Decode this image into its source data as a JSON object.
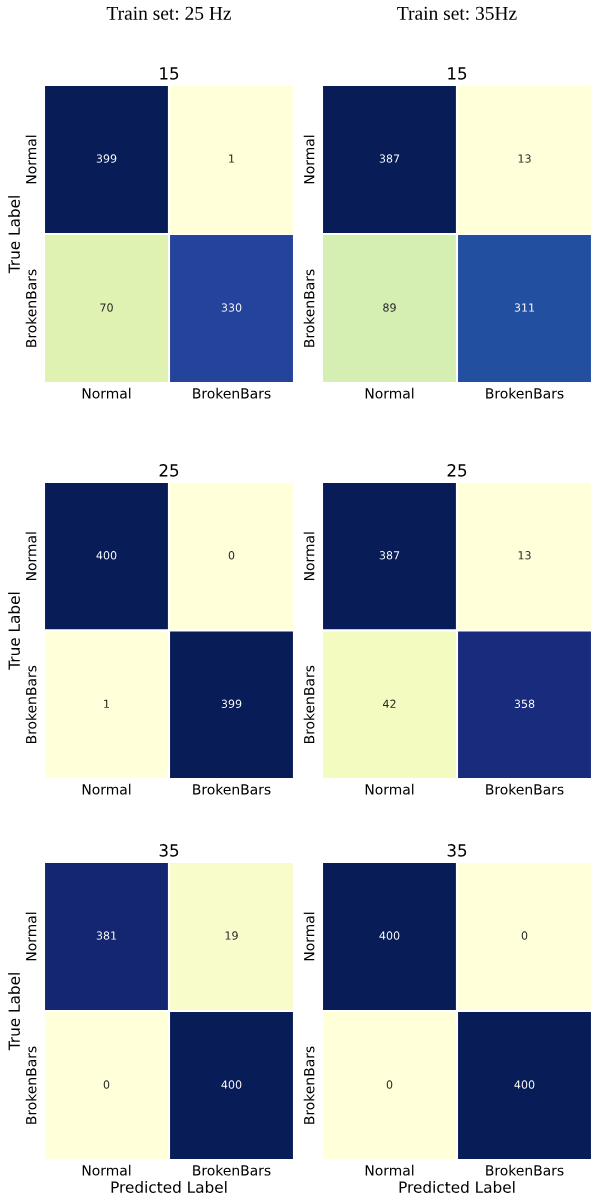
{
  "chart_data": [
    {
      "type": "heatmap",
      "subtitle": "Train set: 25 Hz",
      "title": "15",
      "ylabel": "True Label",
      "categories": [
        "Normal",
        "BrokenBars"
      ],
      "y_categories": [
        "Normal",
        "BrokenBars"
      ],
      "cells": [
        [
          399,
          1
        ],
        [
          70,
          330
        ]
      ],
      "data_labels": true
    },
    {
      "type": "heatmap",
      "subtitle": "Train set: 35Hz",
      "title": "15",
      "categories": [
        "Normal",
        "BrokenBars"
      ],
      "y_categories": [
        "Normal",
        "BrokenBars"
      ],
      "cells": [
        [
          387,
          13
        ],
        [
          89,
          311
        ]
      ],
      "data_labels": true
    },
    {
      "type": "heatmap",
      "title": "25",
      "ylabel": "True Label",
      "categories": [
        "Normal",
        "BrokenBars"
      ],
      "y_categories": [
        "Normal",
        "BrokenBars"
      ],
      "cells": [
        [
          400,
          0
        ],
        [
          1,
          399
        ]
      ],
      "data_labels": true
    },
    {
      "type": "heatmap",
      "title": "25",
      "categories": [
        "Normal",
        "BrokenBars"
      ],
      "y_categories": [
        "Normal",
        "BrokenBars"
      ],
      "cells": [
        [
          387,
          13
        ],
        [
          42,
          358
        ]
      ],
      "data_labels": true
    },
    {
      "type": "heatmap",
      "title": "35",
      "ylabel": "True Label",
      "xlabel": "Predicted Label",
      "categories": [
        "Normal",
        "BrokenBars"
      ],
      "y_categories": [
        "Normal",
        "BrokenBars"
      ],
      "cells": [
        [
          381,
          19
        ],
        [
          0,
          400
        ]
      ],
      "data_labels": true
    },
    {
      "type": "heatmap",
      "title": "35",
      "xlabel": "Predicted Label",
      "categories": [
        "Normal",
        "BrokenBars"
      ],
      "y_categories": [
        "Normal",
        "BrokenBars"
      ],
      "cells": [
        [
          400,
          0
        ],
        [
          0,
          400
        ]
      ],
      "data_labels": true
    }
  ]
}
